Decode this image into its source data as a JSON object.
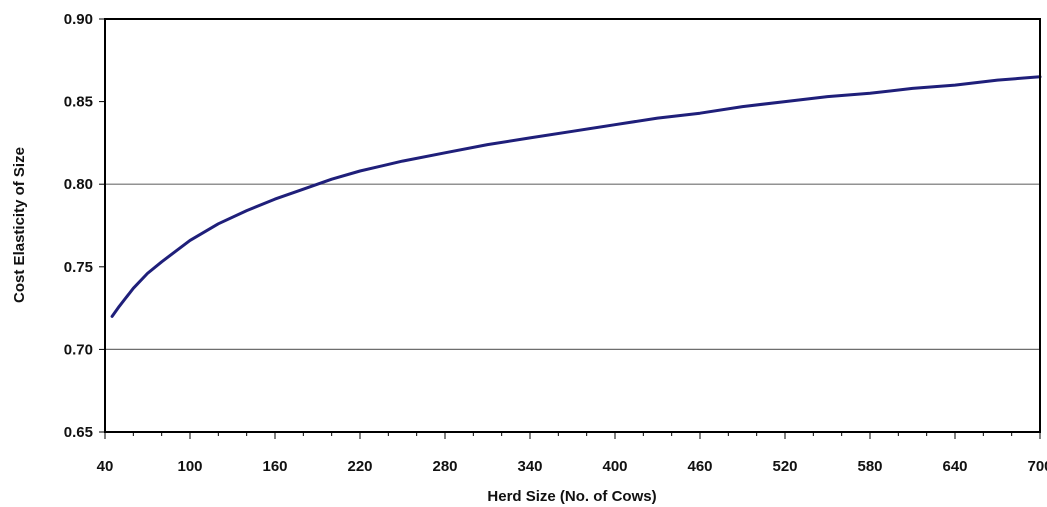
{
  "chart_data": {
    "type": "line",
    "title": "",
    "xlabel": "Herd Size (No. of Cows)",
    "ylabel": "Cost Elasticity of Size",
    "xlim": [
      40,
      700
    ],
    "ylim": [
      0.65,
      0.9
    ],
    "xticks": [
      40,
      100,
      160,
      220,
      280,
      340,
      400,
      460,
      520,
      580,
      640,
      700
    ],
    "yticks": [
      0.65,
      0.7,
      0.75,
      0.8,
      0.85,
      0.9
    ],
    "ytick_labels": [
      "0.65",
      "0.70",
      "0.75",
      "0.80",
      "0.85",
      "0.90"
    ],
    "grid": {
      "horizontal": [
        0.7,
        0.8
      ]
    },
    "series": [
      {
        "x": [
          45,
          50,
          60,
          70,
          80,
          100,
          120,
          140,
          160,
          180,
          200,
          220,
          250,
          280,
          310,
          340,
          370,
          400,
          430,
          460,
          490,
          520,
          550,
          580,
          610,
          640,
          670,
          700
        ],
        "y": [
          0.72,
          0.726,
          0.737,
          0.746,
          0.753,
          0.766,
          0.776,
          0.784,
          0.791,
          0.797,
          0.803,
          0.808,
          0.814,
          0.819,
          0.824,
          0.828,
          0.832,
          0.836,
          0.84,
          0.843,
          0.847,
          0.85,
          0.853,
          0.855,
          0.858,
          0.86,
          0.863,
          0.865
        ]
      }
    ],
    "colors": {
      "line": "#1f1f7a",
      "grid": "#6e6e6e",
      "frame": "#000000"
    }
  }
}
